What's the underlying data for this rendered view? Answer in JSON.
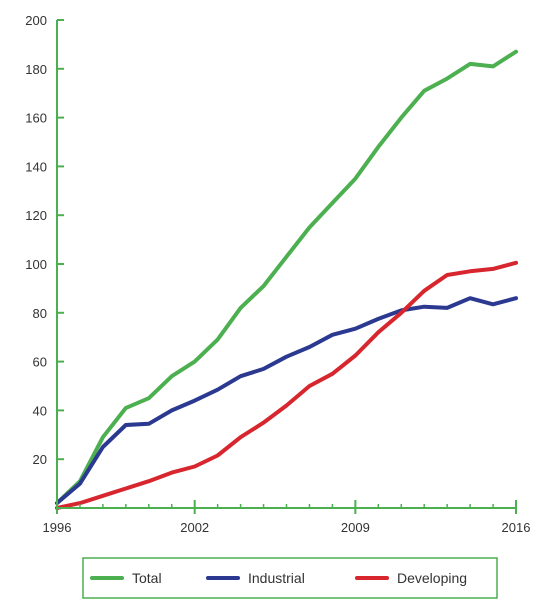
{
  "chart_data": {
    "type": "line",
    "title": "",
    "xlabel": "",
    "ylabel": "",
    "xlim": [
      1996,
      2016
    ],
    "ylim": [
      0,
      200
    ],
    "x_ticks": [
      {
        "value": 1996,
        "label": "1996"
      },
      {
        "value": 2002,
        "label": "2002"
      },
      {
        "value": 2009,
        "label": "2009"
      },
      {
        "value": 2016,
        "label": "2016"
      }
    ],
    "y_ticks": [
      {
        "value": 20,
        "label": "20"
      },
      {
        "value": 40,
        "label": "40"
      },
      {
        "value": 60,
        "label": "60"
      },
      {
        "value": 80,
        "label": "80"
      },
      {
        "value": 100,
        "label": "100"
      },
      {
        "value": 120,
        "label": "120"
      },
      {
        "value": 140,
        "label": "140"
      },
      {
        "value": 160,
        "label": "160"
      },
      {
        "value": 180,
        "label": "180"
      },
      {
        "value": 200,
        "label": "200"
      }
    ],
    "grid": false,
    "legend_position": "bottom",
    "x": [
      1996,
      1997,
      1998,
      1999,
      2000,
      2001,
      2002,
      2003,
      2004,
      2005,
      2006,
      2007,
      2008,
      2009,
      2010,
      2011,
      2012,
      2013,
      2014,
      2015,
      2016
    ],
    "series": [
      {
        "name": "Total",
        "color": "#4caf50",
        "values": [
          2,
          11,
          29,
          41,
          45,
          54,
          60,
          69,
          82,
          91,
          103,
          115,
          125,
          135,
          148,
          160,
          171,
          176,
          182,
          181,
          187
        ]
      },
      {
        "name": "Industrial",
        "color": "#2b3990",
        "values": [
          2,
          10,
          25,
          34,
          34.5,
          40,
          44,
          48.5,
          54,
          57,
          62,
          66,
          71,
          73.5,
          77.5,
          81,
          82.5,
          82,
          86,
          83.5,
          86
        ]
      },
      {
        "name": "Developing",
        "color": "#d7262e",
        "values": [
          0,
          2,
          5,
          8,
          11,
          14.5,
          17,
          21.5,
          29,
          35,
          42,
          50,
          55,
          62.5,
          72,
          80,
          89,
          95.5,
          97,
          98,
          100.5
        ]
      }
    ]
  }
}
